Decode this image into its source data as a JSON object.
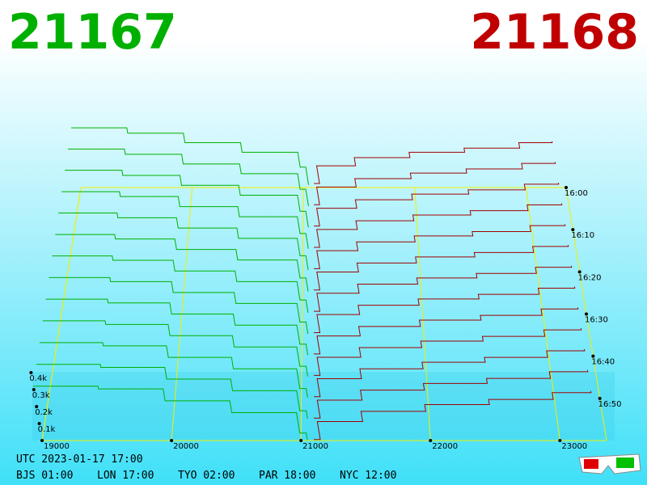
{
  "chart_data": {
    "type": "depth3d",
    "bid_label": "21167",
    "ask_label": "21168",
    "utc_label": "UTC 2023-01-17 17:00",
    "clocks": [
      "BJS 01:00",
      "LON 17:00",
      "TYO 02:00",
      "PAR 18:00",
      "NYC 12:00"
    ],
    "xlim": [
      19000,
      23360
    ],
    "xticks": [
      19000,
      20000,
      21000,
      22000,
      23000
    ],
    "ylim": [
      0,
      500
    ],
    "yticks": [
      {
        "value": 100,
        "label": "0.1k"
      },
      {
        "value": 200,
        "label": "0.2k"
      },
      {
        "value": 300,
        "label": "0.3k"
      },
      {
        "value": 400,
        "label": "0.4k"
      }
    ],
    "tlim": [
      960,
      1020
    ],
    "tticks": [
      {
        "value": 960,
        "label": "16:00"
      },
      {
        "value": 970,
        "label": "16:10"
      },
      {
        "value": 980,
        "label": "16:20"
      },
      {
        "value": 990,
        "label": "16:30"
      },
      {
        "value": 1000,
        "label": "16:40"
      },
      {
        "value": 1010,
        "label": "16:50"
      }
    ],
    "bid_color": "#00b000",
    "ask_color": "#a00000",
    "frame_color": "#f0f000",
    "bid_prices": [
      19000,
      19500,
      20000,
      20500,
      21000,
      21050
    ],
    "ask_prices": [
      21100,
      21150,
      21500,
      22000,
      22500,
      23000,
      23300
    ],
    "snapshots": [
      {
        "t": 960,
        "bids": [
          440,
          400,
          330,
          260,
          150,
          20
        ],
        "asks": [
          30,
          160,
          220,
          260,
          290,
          330,
          340
        ]
      },
      {
        "t": 965,
        "bids": [
          430,
          392,
          322,
          252,
          140,
          18
        ],
        "asks": [
          28,
          156,
          216,
          256,
          286,
          326,
          336
        ]
      },
      {
        "t": 970,
        "bids": [
          420,
          384,
          314,
          244,
          130,
          16
        ],
        "asks": [
          26,
          152,
          212,
          252,
          282,
          322,
          332
        ]
      },
      {
        "t": 975,
        "bids": [
          410,
          376,
          306,
          236,
          120,
          14
        ],
        "asks": [
          24,
          148,
          208,
          248,
          278,
          318,
          328
        ]
      },
      {
        "t": 980,
        "bids": [
          400,
          368,
          298,
          228,
          110,
          12
        ],
        "asks": [
          22,
          144,
          204,
          244,
          274,
          314,
          324
        ]
      },
      {
        "t": 985,
        "bids": [
          390,
          360,
          290,
          220,
          100,
          10
        ],
        "asks": [
          20,
          140,
          200,
          240,
          270,
          310,
          320
        ]
      },
      {
        "t": 990,
        "bids": [
          380,
          352,
          282,
          212,
          92,
          9
        ],
        "asks": [
          18,
          136,
          196,
          236,
          266,
          306,
          316
        ]
      },
      {
        "t": 995,
        "bids": [
          370,
          344,
          274,
          204,
          84,
          8
        ],
        "asks": [
          16,
          132,
          192,
          232,
          262,
          302,
          312
        ]
      },
      {
        "t": 1000,
        "bids": [
          360,
          336,
          266,
          196,
          76,
          7
        ],
        "asks": [
          14,
          128,
          188,
          228,
          258,
          298,
          308
        ]
      },
      {
        "t": 1005,
        "bids": [
          350,
          328,
          258,
          188,
          68,
          6
        ],
        "asks": [
          12,
          124,
          184,
          224,
          254,
          294,
          304
        ]
      },
      {
        "t": 1010,
        "bids": [
          340,
          320,
          250,
          180,
          60,
          5
        ],
        "asks": [
          10,
          120,
          180,
          220,
          250,
          290,
          300
        ]
      },
      {
        "t": 1015,
        "bids": [
          330,
          312,
          242,
          172,
          52,
          4
        ],
        "asks": [
          8,
          116,
          176,
          216,
          246,
          286,
          296
        ]
      },
      {
        "t": 1020,
        "bids": [
          320,
          304,
          234,
          164,
          44,
          3
        ],
        "asks": [
          6,
          112,
          172,
          212,
          242,
          282,
          292
        ]
      }
    ]
  }
}
